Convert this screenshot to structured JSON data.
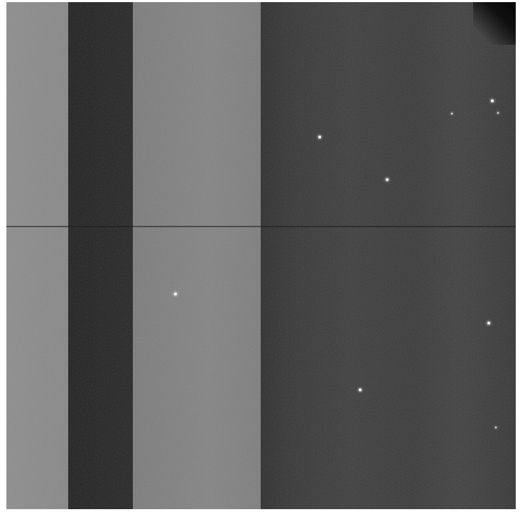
{
  "image": {
    "kind": "grayscale sensor frame",
    "colors": {
      "band_light": "#8a8a8a",
      "band_dark": "#1e1e1e",
      "band_mid": "#7e7e7e",
      "band_right": "#373737",
      "seam": "#0a0a0a",
      "hot_pixel": "#f2f2f2"
    }
  }
}
